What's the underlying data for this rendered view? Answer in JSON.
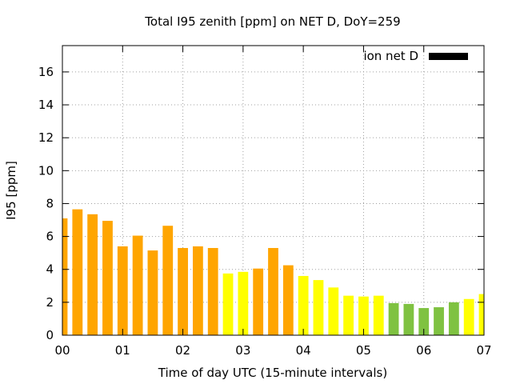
{
  "chart_data": {
    "type": "bar",
    "title": "Total I95 zenith [ppm] on NET D, DoY=259",
    "xlabel": "Time of day UTC (15-minute intervals)",
    "ylabel": "I95 [ppm]",
    "xlim": [
      0,
      7
    ],
    "ylim": [
      0,
      17.6
    ],
    "x_ticks": [
      "00",
      "01",
      "02",
      "03",
      "04",
      "05",
      "06",
      "07"
    ],
    "y_ticks": [
      "0",
      "2",
      "4",
      "6",
      "8",
      "10",
      "12",
      "14",
      "16"
    ],
    "grid": true,
    "legend": {
      "position": "top-right",
      "entries": [
        {
          "label": "ion net D",
          "color": "#000000"
        }
      ]
    },
    "bar_width_hours": 0.17,
    "colors": {
      "orange": "#ffa500",
      "yellow": "#ffff00",
      "green": "#7fc241"
    },
    "bars": [
      {
        "x": 0.0,
        "value": 7.1,
        "color": "orange"
      },
      {
        "x": 0.25,
        "value": 7.65,
        "color": "orange"
      },
      {
        "x": 0.5,
        "value": 7.35,
        "color": "orange"
      },
      {
        "x": 0.75,
        "value": 6.95,
        "color": "orange"
      },
      {
        "x": 1.0,
        "value": 5.4,
        "color": "orange"
      },
      {
        "x": 1.25,
        "value": 6.05,
        "color": "orange"
      },
      {
        "x": 1.5,
        "value": 5.15,
        "color": "orange"
      },
      {
        "x": 1.75,
        "value": 6.65,
        "color": "orange"
      },
      {
        "x": 2.0,
        "value": 5.3,
        "color": "orange"
      },
      {
        "x": 2.25,
        "value": 5.4,
        "color": "orange"
      },
      {
        "x": 2.5,
        "value": 5.3,
        "color": "orange"
      },
      {
        "x": 2.75,
        "value": 3.75,
        "color": "yellow"
      },
      {
        "x": 3.0,
        "value": 3.85,
        "color": "yellow"
      },
      {
        "x": 3.25,
        "value": 4.05,
        "color": "orange"
      },
      {
        "x": 3.5,
        "value": 5.3,
        "color": "orange"
      },
      {
        "x": 3.75,
        "value": 4.25,
        "color": "orange"
      },
      {
        "x": 4.0,
        "value": 3.6,
        "color": "yellow"
      },
      {
        "x": 4.25,
        "value": 3.35,
        "color": "yellow"
      },
      {
        "x": 4.5,
        "value": 2.9,
        "color": "yellow"
      },
      {
        "x": 4.75,
        "value": 2.4,
        "color": "yellow"
      },
      {
        "x": 5.0,
        "value": 2.35,
        "color": "yellow"
      },
      {
        "x": 5.25,
        "value": 2.4,
        "color": "yellow"
      },
      {
        "x": 5.5,
        "value": 1.95,
        "color": "green"
      },
      {
        "x": 5.75,
        "value": 1.9,
        "color": "green"
      },
      {
        "x": 6.0,
        "value": 1.65,
        "color": "green"
      },
      {
        "x": 6.25,
        "value": 1.7,
        "color": "green"
      },
      {
        "x": 6.5,
        "value": 2.0,
        "color": "green"
      },
      {
        "x": 6.75,
        "value": 2.2,
        "color": "yellow"
      },
      {
        "x": 7.0,
        "value": 2.5,
        "color": "yellow"
      }
    ]
  }
}
